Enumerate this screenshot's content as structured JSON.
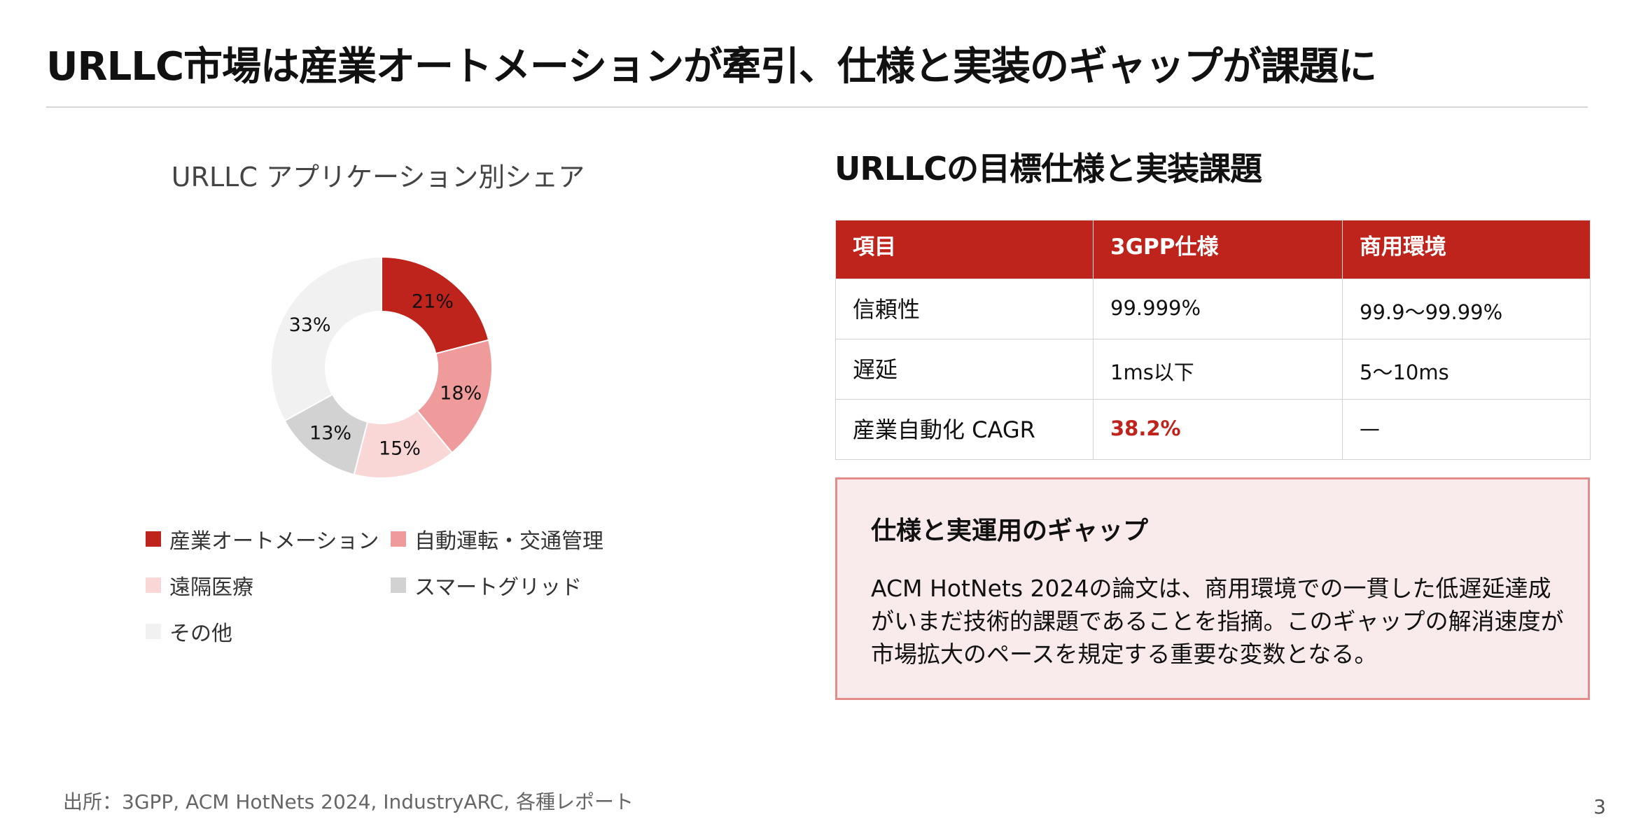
{
  "slide": {
    "title": "URLLC市場は産業オートメーションが牽引、仕様と実装のギャップが課題に",
    "source": "出所：3GPP, ACM HotNets 2024, IndustryARC, 各種レポート",
    "page_number": "3"
  },
  "chart_data": {
    "type": "pie",
    "variant": "donut",
    "title": "URLLC アプリケーション別シェア",
    "categories": [
      "産業オートメーション",
      "自動運転・交通管理",
      "遠隔医療",
      "スマートグリッド",
      "その他"
    ],
    "values": [
      21,
      18,
      15,
      13,
      33
    ],
    "labels": [
      "21%",
      "18%",
      "15%",
      "13%",
      "33%"
    ],
    "colors": [
      "#be231c",
      "#f09b9b",
      "#f9d7d7",
      "#d2d2d2",
      "#f1f1f1"
    ],
    "legend_position": "bottom"
  },
  "spec_section": {
    "heading": "URLLCの目標仕様と実装課題",
    "columns": [
      "項目",
      "3GPP仕様",
      "商用環境"
    ],
    "rows": [
      [
        "信頼性",
        "99.999%",
        "99.9〜99.99%"
      ],
      [
        "遅延",
        "1ms以下",
        "5〜10ms"
      ],
      [
        "産業自動化 CAGR",
        "38.2%",
        "—"
      ]
    ],
    "highlight_color": "#be231c"
  },
  "gap_box": {
    "title": "仕様と実運用のギャップ",
    "body": "ACM HotNets 2024の論文は、商用環境での一貫した低遅延達成がいまだ技術的課題であることを指摘。このギャップの解消速度が市場拡大のペースを規定する重要な変数となる。"
  }
}
